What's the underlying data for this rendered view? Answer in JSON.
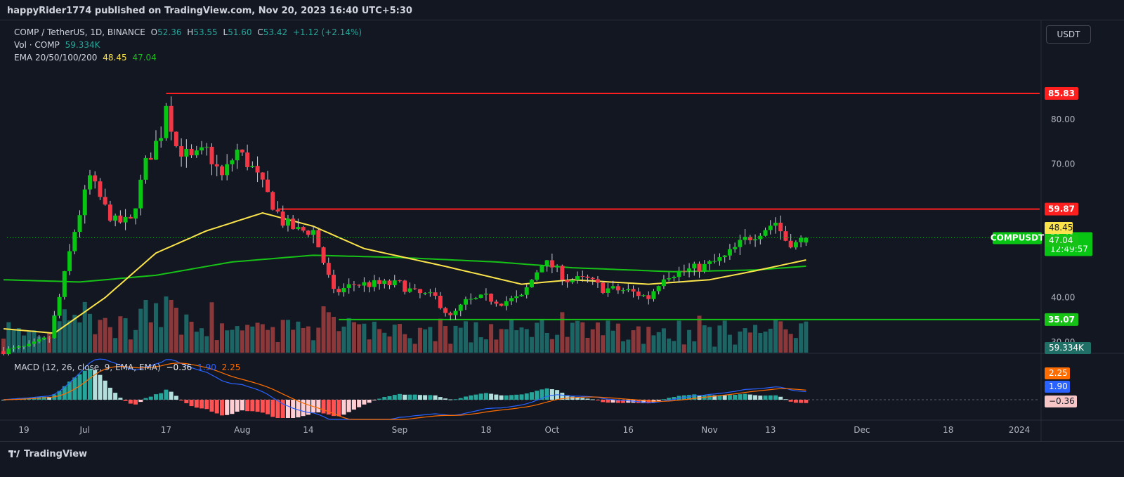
{
  "header": {
    "publisher": "happyRider1774 published on TradingView.com, Nov 20, 2023 16:40 UTC+5:30"
  },
  "legend": {
    "symbol": "COMP / TetherUS, 1D, BINANCE",
    "o_label": "O",
    "o": "52.36",
    "h_label": "H",
    "h": "53.55",
    "l_label": "L",
    "l": "51.60",
    "c_label": "C",
    "c": "53.42",
    "change": "+1.12 (+2.14%)",
    "vol_label": "Vol · COMP",
    "vol": "59.334K",
    "ema_label": "EMA 20/50/100/200",
    "ema_yellow": "48.45",
    "ema_green": "47.04",
    "macd_label": "MACD (12, 26, close, 9, EMA, EMA)",
    "macd_hist": "−0.36",
    "macd_line": "1.90",
    "macd_signal": "2.25"
  },
  "toolbar": {
    "currency_button": "USDT"
  },
  "footer": {
    "brand": "TradingView"
  },
  "colors": {
    "up": "#26a69a",
    "down": "#ef5350",
    "candle_up": "#08c514",
    "candle_down": "#f23645",
    "ema_yellow": "#fbe44b",
    "ema_green": "#16c216",
    "resistance": "#ff1f1f",
    "support": "#16c216",
    "macd_line": "#2962ff",
    "signal_line": "#ff6d00"
  },
  "chart_data": {
    "type": "candlestick",
    "symbol": "COMPUSDT",
    "y_axis": {
      "ticks": [
        80,
        70,
        40,
        30
      ],
      "tick_labels": [
        "80.00",
        "70.00",
        "40.00",
        "30.00"
      ],
      "range": [
        27,
        90
      ]
    },
    "x_axis": {
      "ticks": [
        {
          "label": "19",
          "date": "2023-06-19"
        },
        {
          "label": "Jul",
          "date": "2023-07-01"
        },
        {
          "label": "17",
          "date": "2023-07-17"
        },
        {
          "label": "Aug",
          "date": "2023-08-01"
        },
        {
          "label": "14",
          "date": "2023-08-14"
        },
        {
          "label": "Sep",
          "date": "2023-09-01"
        },
        {
          "label": "18",
          "date": "2023-09-18"
        },
        {
          "label": "Oct",
          "date": "2023-10-01"
        },
        {
          "label": "16",
          "date": "2023-10-16"
        },
        {
          "label": "Nov",
          "date": "2023-11-01"
        },
        {
          "label": "13",
          "date": "2023-11-13"
        },
        {
          "label": "Dec",
          "date": "2023-12-01"
        },
        {
          "label": "18",
          "date": "2023-12-18"
        },
        {
          "label": "2024",
          "date": "2024-01-01"
        }
      ],
      "first_bar_date": "2023-06-15",
      "last_bar_date": "2023-11-20"
    },
    "horizontal_lines": [
      {
        "label": "85.83",
        "value": 85.83,
        "color": "#ff1f1f",
        "start_date": "2023-07-17"
      },
      {
        "label": "59.87",
        "value": 59.87,
        "color": "#ff1f1f",
        "start_date": "2023-08-08"
      },
      {
        "label": "35.07",
        "value": 35.07,
        "color": "#16c216",
        "start_date": "2023-08-20"
      }
    ],
    "price_labels": [
      {
        "text": "53.42",
        "value": 53.42,
        "color": "#08c514"
      },
      {
        "text": "12:49:57",
        "value": 53.42,
        "color": "#08c514"
      },
      {
        "text": "48.45",
        "value": 48.45,
        "color": "#fbe44b"
      },
      {
        "text": "47.04",
        "value": 47.04,
        "color": "#16c216"
      }
    ],
    "last_price_tag": "COMPUSDT",
    "countdown": "12:49:57",
    "volume_label": "59.334K",
    "volume_pane": {
      "last": 59.334,
      "unit": "K"
    },
    "macd_labels": [
      {
        "text": "2.25",
        "value": 2.25,
        "color": "#ff6d00"
      },
      {
        "text": "1.90",
        "value": 1.9,
        "color": "#2962ff"
      },
      {
        "text": "−0.36",
        "value": -0.36,
        "color": "#f7c6c6"
      }
    ],
    "price_anchors": [
      [
        "2023-06-15",
        28
      ],
      [
        "2023-06-20",
        29
      ],
      [
        "2023-06-24",
        31
      ],
      [
        "2023-06-26",
        40
      ],
      [
        "2023-06-29",
        55
      ],
      [
        "2023-07-02",
        67
      ],
      [
        "2023-07-05",
        60
      ],
      [
        "2023-07-07",
        57
      ],
      [
        "2023-07-10",
        57
      ],
      [
        "2023-07-13",
        70
      ],
      [
        "2023-07-16",
        77
      ],
      [
        "2023-07-17",
        84
      ],
      [
        "2023-07-19",
        74
      ],
      [
        "2023-07-22",
        71
      ],
      [
        "2023-07-25",
        73
      ],
      [
        "2023-07-28",
        67
      ],
      [
        "2023-07-31",
        73
      ],
      [
        "2023-08-03",
        69
      ],
      [
        "2023-08-06",
        63
      ],
      [
        "2023-08-09",
        57
      ],
      [
        "2023-08-12",
        55
      ],
      [
        "2023-08-15",
        55
      ],
      [
        "2023-08-17",
        48
      ],
      [
        "2023-08-19",
        41
      ],
      [
        "2023-08-23",
        43
      ],
      [
        "2023-08-28",
        43
      ],
      [
        "2023-09-01",
        43
      ],
      [
        "2023-09-04",
        41
      ],
      [
        "2023-09-08",
        40
      ],
      [
        "2023-09-11",
        35.5
      ],
      [
        "2023-09-14",
        39
      ],
      [
        "2023-09-18",
        40
      ],
      [
        "2023-09-21",
        39
      ],
      [
        "2023-09-25",
        40
      ],
      [
        "2023-09-29",
        48
      ],
      [
        "2023-10-01",
        47
      ],
      [
        "2023-10-04",
        44
      ],
      [
        "2023-10-08",
        44
      ],
      [
        "2023-10-11",
        42
      ],
      [
        "2023-10-16",
        41.5
      ],
      [
        "2023-10-20",
        40
      ],
      [
        "2023-10-23",
        45
      ],
      [
        "2023-10-27",
        46
      ],
      [
        "2023-10-31",
        47
      ],
      [
        "2023-11-04",
        49
      ],
      [
        "2023-11-08",
        53
      ],
      [
        "2023-11-11",
        55
      ],
      [
        "2023-11-14",
        57
      ],
      [
        "2023-11-16",
        53
      ],
      [
        "2023-11-18",
        52
      ],
      [
        "2023-11-20",
        53.42
      ]
    ],
    "ema_yellow_anchors": [
      [
        "2023-06-15",
        33
      ],
      [
        "2023-06-25",
        32
      ],
      [
        "2023-07-05",
        40
      ],
      [
        "2023-07-15",
        50
      ],
      [
        "2023-07-25",
        55
      ],
      [
        "2023-08-05",
        59
      ],
      [
        "2023-08-15",
        56
      ],
      [
        "2023-08-25",
        51
      ],
      [
        "2023-09-10",
        47
      ],
      [
        "2023-09-25",
        43
      ],
      [
        "2023-10-05",
        44
      ],
      [
        "2023-10-20",
        43
      ],
      [
        "2023-11-01",
        44
      ],
      [
        "2023-11-10",
        46
      ],
      [
        "2023-11-20",
        48.45
      ]
    ],
    "ema_green_anchors": [
      [
        "2023-06-15",
        44
      ],
      [
        "2023-06-30",
        43.5
      ],
      [
        "2023-07-15",
        45
      ],
      [
        "2023-07-30",
        48
      ],
      [
        "2023-08-15",
        49.5
      ],
      [
        "2023-09-01",
        49
      ],
      [
        "2023-09-20",
        48
      ],
      [
        "2023-10-05",
        46.7
      ],
      [
        "2023-10-25",
        45.8
      ],
      [
        "2023-11-10",
        46.2
      ],
      [
        "2023-11-20",
        47.04
      ]
    ]
  }
}
